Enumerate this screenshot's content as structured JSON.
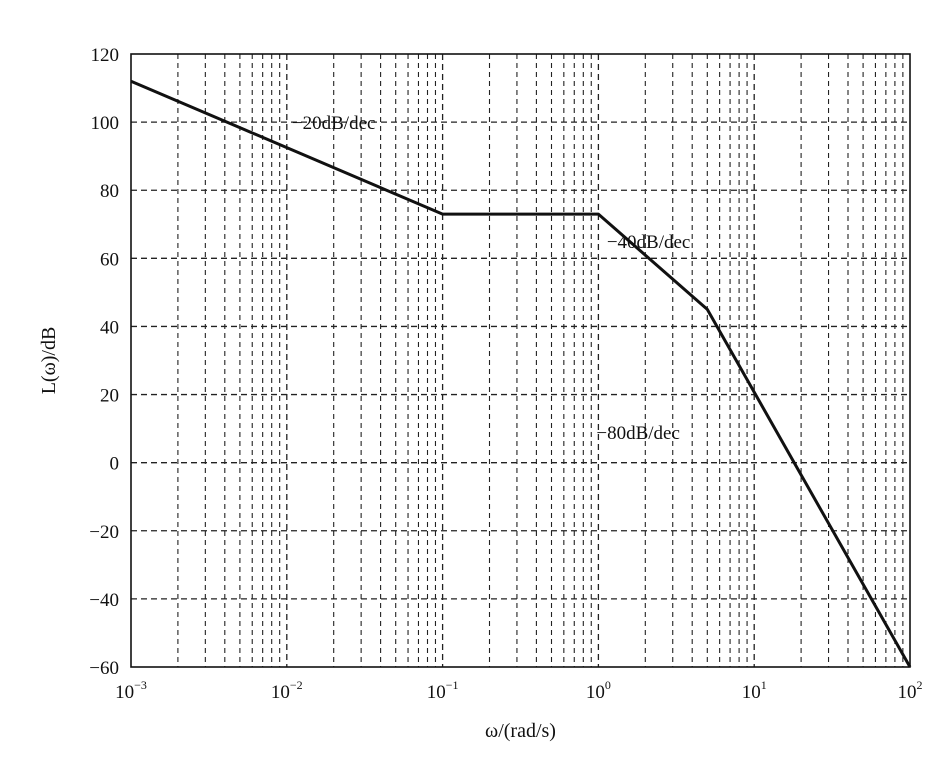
{
  "chart_data": {
    "type": "line",
    "x_scale": "log",
    "xlim": [
      0.001,
      100
    ],
    "ylim": [
      -60,
      120
    ],
    "grid": true,
    "xlabel": "ω/(rad/s)",
    "ylabel": "L(ω)/dB",
    "x_ticks": [
      {
        "value": 0.001,
        "base": "10",
        "exp": "−3"
      },
      {
        "value": 0.01,
        "base": "10",
        "exp": "−2"
      },
      {
        "value": 0.1,
        "base": "10",
        "exp": "−1"
      },
      {
        "value": 1,
        "base": "10",
        "exp": "0"
      },
      {
        "value": 10,
        "base": "10",
        "exp": "1"
      },
      {
        "value": 100,
        "base": "10",
        "exp": "2"
      }
    ],
    "y_ticks": [
      {
        "value": 120,
        "label": "120"
      },
      {
        "value": 100,
        "label": "100"
      },
      {
        "value": 80,
        "label": "80"
      },
      {
        "value": 60,
        "label": "60"
      },
      {
        "value": 40,
        "label": "40"
      },
      {
        "value": 20,
        "label": "20"
      },
      {
        "value": 0,
        "label": "0"
      },
      {
        "value": -20,
        "label": "−20"
      },
      {
        "value": -40,
        "label": "−40"
      },
      {
        "value": -60,
        "label": "−60"
      }
    ],
    "series": [
      {
        "points": [
          {
            "x": 0.001,
            "y": 112
          },
          {
            "x": 0.1,
            "y": 73
          },
          {
            "x": 1,
            "y": 73
          },
          {
            "x": 5,
            "y": 45
          },
          {
            "x": 100,
            "y": -60
          }
        ]
      }
    ],
    "annotations": [
      {
        "text": "−20dB/dec",
        "x": 0.02,
        "y": 98
      },
      {
        "text": "−40dB/dec",
        "x": 2.1,
        "y": 63
      },
      {
        "text": "−80dB/dec",
        "x": 1.8,
        "y": 7
      }
    ]
  }
}
